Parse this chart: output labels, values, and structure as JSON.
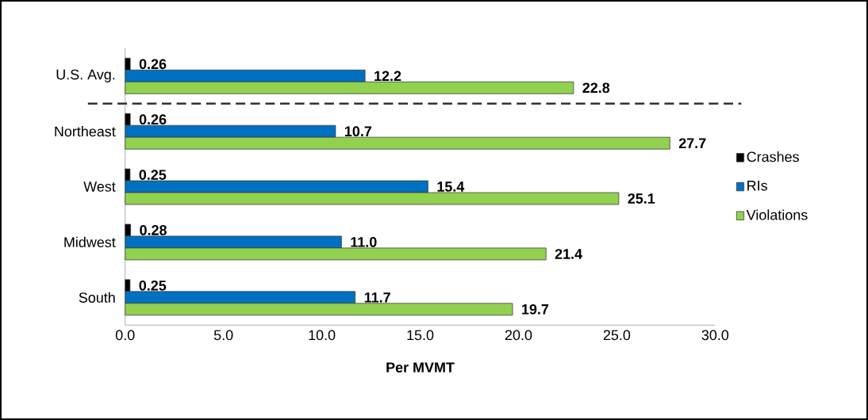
{
  "chart_data": {
    "type": "bar",
    "orientation": "horizontal",
    "xlabel": "Per MVMT",
    "categories": [
      "U.S. Avg.",
      "Northeast",
      "West",
      "Midwest",
      "South"
    ],
    "series": [
      {
        "name": "Crashes",
        "color": "#000000",
        "values": [
          0.26,
          0.26,
          0.25,
          0.28,
          0.25
        ],
        "value_labels": [
          "0.26",
          "0.26",
          "0.25",
          "0.28",
          "0.25"
        ]
      },
      {
        "name": "RIs",
        "color": "#0070c0",
        "values": [
          12.2,
          10.7,
          15.4,
          11.0,
          11.7
        ],
        "value_labels": [
          "12.2",
          "10.7",
          "15.4",
          "11.0",
          "11.7"
        ]
      },
      {
        "name": "Violations",
        "color": "#92d050",
        "values": [
          22.8,
          27.7,
          25.1,
          21.4,
          19.7
        ],
        "value_labels": [
          "22.8",
          "27.7",
          "25.1",
          "21.4",
          "19.7"
        ]
      }
    ],
    "xlim": [
      0,
      30
    ],
    "xticks": [
      {
        "value": 0,
        "label": "0.0"
      },
      {
        "value": 5,
        "label": "5.0"
      },
      {
        "value": 10,
        "label": "10.0"
      },
      {
        "value": 15,
        "label": "15.0"
      },
      {
        "value": 20,
        "label": "20.0"
      },
      {
        "value": 25,
        "label": "25.0"
      },
      {
        "value": 30,
        "label": "30.0"
      }
    ],
    "legend": "right"
  }
}
